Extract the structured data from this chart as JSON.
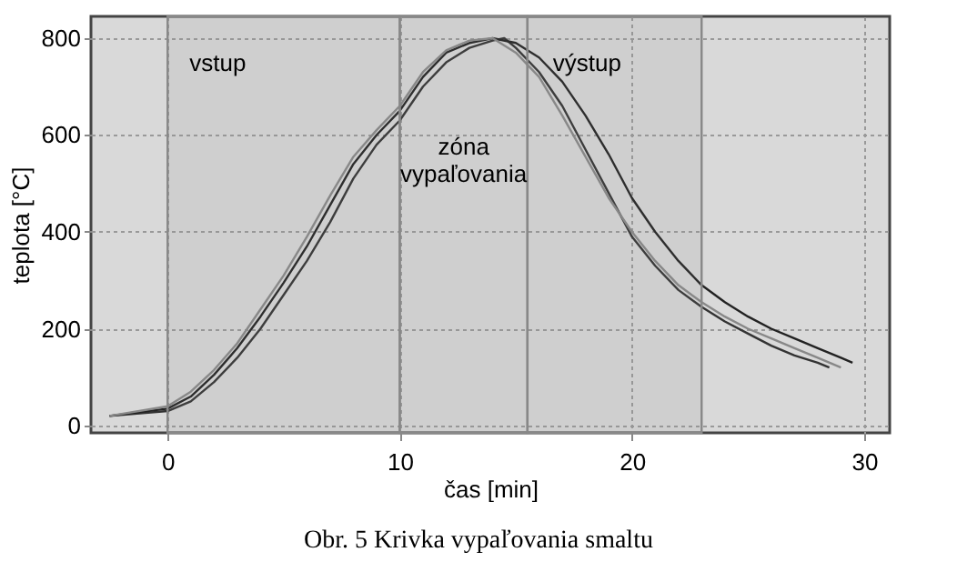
{
  "chart_data": {
    "type": "line",
    "xlabel": "čas [min]",
    "ylabel": "teplota [°C]",
    "x": [
      -2.5,
      0,
      1,
      2,
      3,
      4,
      5,
      6,
      7,
      8,
      9,
      10,
      11,
      12,
      13,
      14,
      14.5,
      15,
      16,
      17,
      18,
      19,
      20,
      21,
      22,
      23,
      24,
      25,
      26,
      27,
      28,
      28.5
    ],
    "series": [
      {
        "color": "#333333",
        "values": [
          20,
          30,
          50,
          90,
          140,
          200,
          270,
          340,
          420,
          510,
          580,
          630,
          700,
          750,
          780,
          795,
          800,
          780,
          730,
          660,
          570,
          480,
          390,
          330,
          280,
          245,
          215,
          190,
          165,
          145,
          130,
          120
        ]
      },
      {
        "color": "#222222",
        "x": [
          -2.5,
          0,
          1,
          2,
          3,
          4,
          5,
          6,
          7,
          8,
          9,
          10,
          11,
          12,
          13,
          14,
          15,
          16,
          17,
          18,
          19,
          20,
          21,
          22,
          23,
          24,
          25,
          26,
          27,
          28,
          29,
          29.5
        ],
        "values": [
          20,
          35,
          60,
          105,
          160,
          225,
          295,
          370,
          455,
          540,
          600,
          650,
          720,
          770,
          790,
          800,
          790,
          760,
          710,
          640,
          560,
          470,
          400,
          340,
          290,
          255,
          225,
          200,
          180,
          160,
          140,
          130
        ]
      },
      {
        "color": "#888888",
        "x": [
          -2.5,
          0,
          1,
          2,
          3,
          4,
          5,
          6,
          7,
          8,
          9,
          10,
          11,
          12,
          13,
          14,
          15,
          16,
          17,
          18,
          19,
          20,
          21,
          22,
          23,
          24,
          25,
          26,
          27,
          28,
          29
        ],
        "values": [
          20,
          40,
          70,
          115,
          170,
          240,
          310,
          390,
          475,
          555,
          610,
          660,
          730,
          775,
          795,
          800,
          770,
          720,
          640,
          555,
          470,
          400,
          340,
          290,
          255,
          225,
          200,
          180,
          160,
          140,
          120
        ]
      }
    ],
    "xlim": [
      -3.3,
      31.1
    ],
    "xticks": [
      0,
      10,
      20,
      30
    ],
    "ylim": [
      -15,
      845
    ],
    "yticks": [
      0,
      200,
      400,
      600,
      800
    ],
    "grid": true,
    "line_style": "solid",
    "marker": "none",
    "bands": [
      {
        "axis": "x",
        "from": 0,
        "to": 10,
        "label": "vstup",
        "color": "#888888"
      },
      {
        "axis": "x",
        "from": 10,
        "to": 15.5,
        "label": "zóna vypaľovania",
        "color": "#888888"
      },
      {
        "axis": "x",
        "from": 15.5,
        "to": 23,
        "label": "výstup",
        "color": "#888888"
      }
    ],
    "annotations": [
      "Obr. 5 Krivka vypaľovania smaltu"
    ]
  }
}
